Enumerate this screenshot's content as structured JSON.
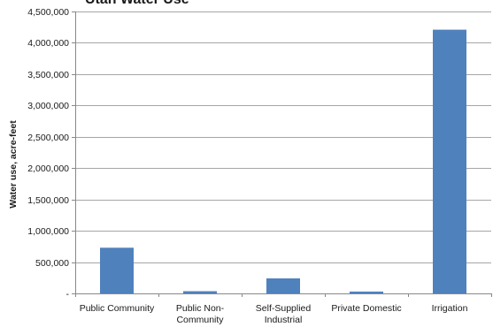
{
  "chart_data": {
    "type": "bar",
    "title": "Utah Water Use",
    "ylabel": "Water use, acre-feet",
    "xlabel": "",
    "ylim": [
      0,
      4500000
    ],
    "yticks": [
      {
        "value": 0,
        "label": "-"
      },
      {
        "value": 500000,
        "label": "500,000"
      },
      {
        "value": 1000000,
        "label": "1,000,000"
      },
      {
        "value": 1500000,
        "label": "1,500,000"
      },
      {
        "value": 2000000,
        "label": "2,000,000"
      },
      {
        "value": 2500000,
        "label": "2,500,000"
      },
      {
        "value": 3000000,
        "label": "3,000,000"
      },
      {
        "value": 3500000,
        "label": "3,500,000"
      },
      {
        "value": 4000000,
        "label": "4,000,000"
      },
      {
        "value": 4500000,
        "label": "4,500,000"
      }
    ],
    "categories": [
      [
        "Public Community"
      ],
      [
        "Public Non-",
        "Community"
      ],
      [
        "Self-Supplied",
        "Industrial"
      ],
      [
        "Private Domestic"
      ],
      [
        "Irrigation"
      ]
    ],
    "values": [
      730000,
      35000,
      240000,
      30000,
      4210000
    ],
    "grid": true,
    "bar_color": "#4f81bd",
    "grid_color": "#a6a6a6"
  }
}
